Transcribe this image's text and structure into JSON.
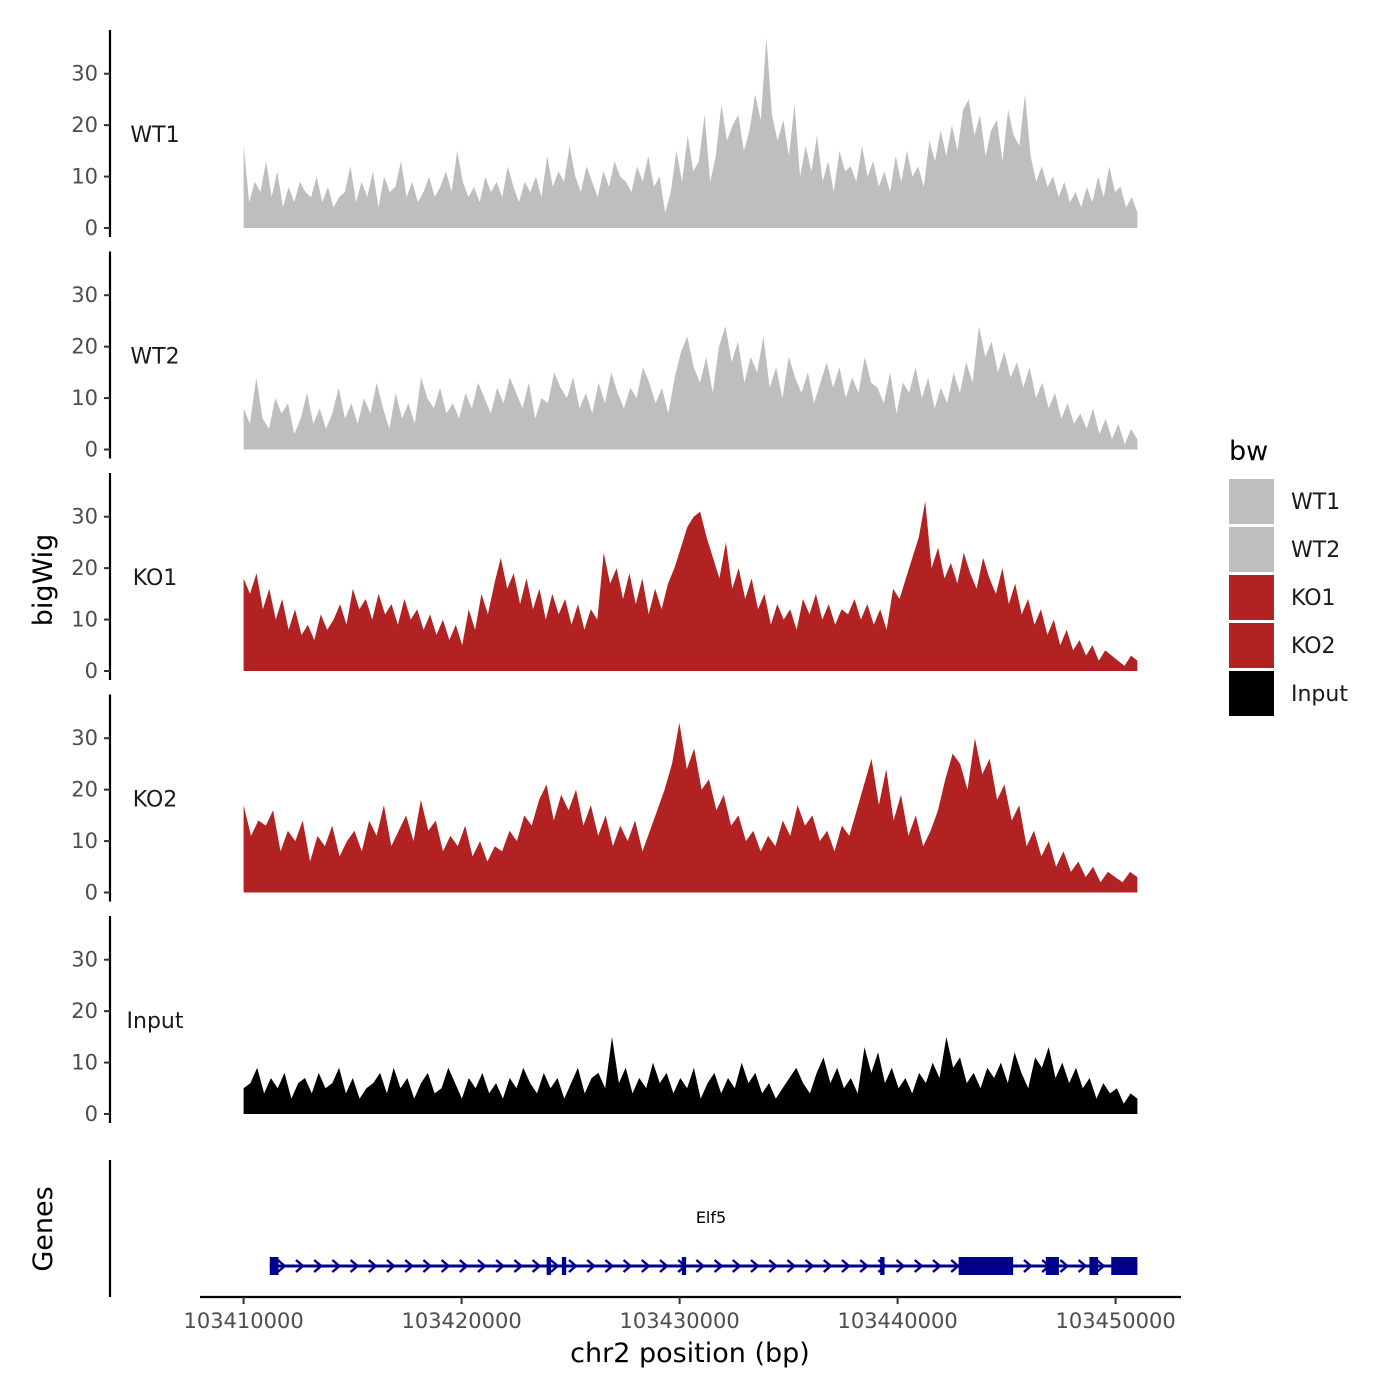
{
  "chart_data": {
    "type": "area",
    "ylabel": "bigWig",
    "xlabel": "chr2 position (bp)",
    "xlim": [
      103408000,
      103453000
    ],
    "ylim": [
      0,
      38
    ],
    "y_ticks": [
      0,
      10,
      20,
      30
    ],
    "x_ticks": [
      103410000,
      103420000,
      103430000,
      103440000,
      103450000
    ],
    "x_tick_labels": [
      "103410000",
      "103420000",
      "103430000",
      "103440000",
      "103450000"
    ],
    "data_x_start": 103410000,
    "data_x_end": 103451000,
    "legend": {
      "title": "bw",
      "placement": "right",
      "entries": [
        {
          "label": "WT1",
          "color": "#bebebe"
        },
        {
          "label": "WT2",
          "color": "#bebebe"
        },
        {
          "label": "KO1",
          "color": "#b22222"
        },
        {
          "label": "KO2",
          "color": "#b22222"
        },
        {
          "label": "Input",
          "color": "#000000"
        }
      ]
    },
    "series": [
      {
        "name": "WT1",
        "color": "#bebebe",
        "values": [
          16,
          5,
          9,
          7,
          13,
          6,
          11,
          4,
          8,
          5,
          9,
          7,
          6,
          10,
          5,
          8,
          4,
          6,
          7,
          12,
          5,
          9,
          6,
          11,
          4,
          10,
          7,
          8,
          13,
          6,
          9,
          5,
          7,
          10,
          6,
          8,
          11,
          7,
          15,
          9,
          6,
          8,
          5,
          10,
          7,
          9,
          6,
          12,
          8,
          5,
          9,
          7,
          10,
          6,
          14,
          8,
          11,
          9,
          16,
          10,
          7,
          12,
          9,
          6,
          11,
          8,
          13,
          10,
          9,
          7,
          12,
          9,
          14,
          8,
          10,
          3,
          7,
          15,
          9,
          18,
          11,
          13,
          22,
          9,
          14,
          24,
          17,
          20,
          22,
          15,
          19,
          26,
          21,
          37,
          22,
          17,
          21,
          14,
          24,
          10,
          16,
          11,
          18,
          9,
          13,
          7,
          15,
          11,
          12,
          9,
          16,
          10,
          13,
          8,
          11,
          7,
          14,
          9,
          15,
          10,
          12,
          8,
          17,
          13,
          19,
          14,
          20,
          15,
          23,
          25,
          18,
          22,
          14,
          19,
          21,
          13,
          23,
          18,
          16,
          26,
          14,
          9,
          12,
          8,
          10,
          6,
          9,
          5,
          7,
          4,
          8,
          5,
          10,
          6,
          12,
          7,
          8,
          4,
          6,
          3
        ]
      },
      {
        "name": "WT2",
        "color": "#bebebe",
        "values": [
          8,
          5,
          14,
          6,
          4,
          10,
          7,
          9,
          3,
          6,
          11,
          5,
          8,
          4,
          7,
          12,
          6,
          9,
          5,
          10,
          7,
          13,
          8,
          4,
          11,
          6,
          9,
          5,
          14,
          10,
          8,
          12,
          7,
          9,
          6,
          11,
          8,
          13,
          10,
          7,
          12,
          9,
          14,
          11,
          8,
          13,
          6,
          10,
          9,
          15,
          12,
          10,
          14,
          8,
          11,
          7,
          13,
          9,
          15,
          11,
          8,
          12,
          10,
          16,
          13,
          9,
          12,
          7,
          14,
          19,
          22,
          16,
          13,
          18,
          11,
          20,
          24,
          17,
          21,
          13,
          18,
          15,
          22,
          12,
          16,
          10,
          18,
          14,
          11,
          15,
          9,
          13,
          17,
          12,
          16,
          10,
          14,
          11,
          18,
          13,
          12,
          9,
          15,
          7,
          13,
          11,
          16,
          10,
          14,
          8,
          12,
          9,
          15,
          11,
          17,
          13,
          24,
          18,
          21,
          15,
          19,
          14,
          17,
          12,
          16,
          10,
          13,
          8,
          11,
          6,
          9,
          5,
          7,
          4,
          8,
          3,
          6,
          2,
          5,
          1,
          4,
          2
        ]
      },
      {
        "name": "KO1",
        "color": "#b22222",
        "values": [
          18,
          15,
          19,
          12,
          16,
          10,
          14,
          8,
          12,
          7,
          9,
          6,
          11,
          8,
          10,
          13,
          9,
          16,
          12,
          14,
          10,
          15,
          11,
          13,
          9,
          14,
          10,
          12,
          8,
          11,
          7,
          10,
          6,
          9,
          5,
          12,
          8,
          15,
          11,
          17,
          22,
          16,
          19,
          13,
          18,
          12,
          16,
          10,
          15,
          11,
          14,
          9,
          13,
          8,
          12,
          10,
          23,
          17,
          20,
          14,
          19,
          13,
          18,
          11,
          16,
          12,
          17,
          20,
          24,
          28,
          30,
          31,
          26,
          22,
          18,
          25,
          16,
          20,
          14,
          18,
          12,
          15,
          9,
          13,
          10,
          12,
          8,
          14,
          11,
          15,
          10,
          13,
          9,
          12,
          11,
          14,
          10,
          13,
          9,
          12,
          8,
          16,
          14,
          18,
          22,
          26,
          33,
          20,
          24,
          18,
          21,
          17,
          23,
          19,
          16,
          22,
          18,
          15,
          20,
          13,
          17,
          11,
          14,
          9,
          12,
          7,
          10,
          5,
          8,
          4,
          6,
          3,
          5,
          2,
          4,
          3,
          2,
          1,
          3,
          2
        ]
      },
      {
        "name": "KO2",
        "color": "#b22222",
        "values": [
          17,
          11,
          14,
          13,
          16,
          8,
          12,
          10,
          14,
          6,
          11,
          9,
          13,
          7,
          10,
          12,
          8,
          14,
          11,
          17,
          9,
          12,
          15,
          10,
          18,
          12,
          14,
          8,
          11,
          9,
          13,
          7,
          10,
          6,
          9,
          8,
          12,
          10,
          15,
          13,
          18,
          21,
          14,
          19,
          16,
          20,
          13,
          17,
          11,
          15,
          9,
          13,
          10,
          14,
          8,
          12,
          16,
          20,
          25,
          33,
          24,
          28,
          20,
          22,
          16,
          19,
          13,
          15,
          10,
          12,
          8,
          11,
          9,
          14,
          11,
          17,
          13,
          15,
          10,
          12,
          8,
          13,
          11,
          16,
          21,
          26,
          17,
          24,
          14,
          19,
          11,
          15,
          9,
          12,
          16,
          22,
          27,
          25,
          20,
          30,
          23,
          26,
          18,
          21,
          14,
          17,
          9,
          12,
          7,
          10,
          5,
          8,
          4,
          6,
          3,
          5,
          2,
          4,
          3,
          2,
          4,
          3
        ]
      },
      {
        "name": "Input",
        "color": "#000000",
        "values": [
          5,
          6,
          9,
          4,
          7,
          5,
          8,
          3,
          6,
          7,
          4,
          8,
          5,
          6,
          9,
          4,
          7,
          3,
          5,
          6,
          8,
          4,
          9,
          5,
          7,
          3,
          6,
          8,
          4,
          5,
          9,
          6,
          3,
          7,
          5,
          8,
          4,
          6,
          3,
          7,
          5,
          9,
          6,
          4,
          8,
          5,
          7,
          3,
          6,
          9,
          4,
          7,
          8,
          5,
          15,
          6,
          9,
          4,
          7,
          5,
          10,
          6,
          8,
          4,
          7,
          5,
          9,
          3,
          6,
          8,
          4,
          7,
          5,
          10,
          6,
          8,
          4,
          6,
          3,
          5,
          7,
          9,
          6,
          4,
          8,
          11,
          6,
          9,
          5,
          7,
          4,
          13,
          8,
          12,
          6,
          9,
          5,
          7,
          4,
          8,
          6,
          10,
          7,
          15,
          9,
          11,
          6,
          8,
          5,
          9,
          7,
          10,
          6,
          12,
          8,
          5,
          11,
          9,
          13,
          7,
          10,
          6,
          9,
          5,
          7,
          3,
          6,
          4,
          5,
          2,
          4,
          3
        ]
      }
    ],
    "gene_track": {
      "label": "Genes",
      "gene_name": "Elf5",
      "strand": "+",
      "start": 103411200,
      "end": 103451000,
      "exons": [
        {
          "start": 103411200,
          "end": 103411600
        },
        {
          "start": 103423900,
          "end": 103424100
        },
        {
          "start": 103424600,
          "end": 103424800
        },
        {
          "start": 103430100,
          "end": 103430300
        },
        {
          "start": 103439200,
          "end": 103439400
        },
        {
          "start": 103442800,
          "end": 103445300
        },
        {
          "start": 103446800,
          "end": 103447400
        },
        {
          "start": 103448800,
          "end": 103449200
        },
        {
          "start": 103449800,
          "end": 103451000
        }
      ]
    }
  }
}
